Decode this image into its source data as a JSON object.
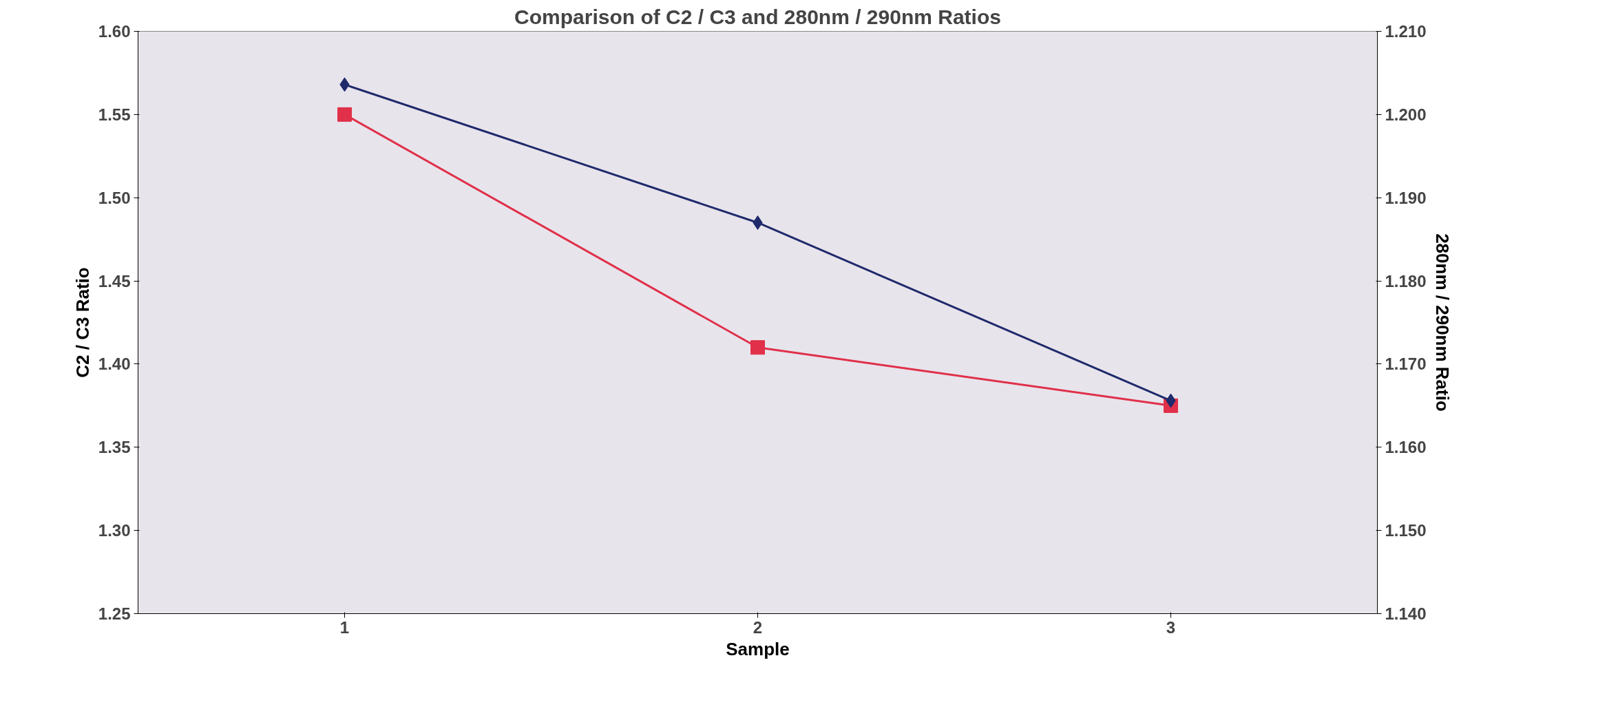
{
  "chart_data": {
    "type": "line",
    "title": "Comparison of C2 / C3 and 280nm / 290nm Ratios",
    "xlabel": "Sample",
    "ylabel": "C2 / C3 Ratio",
    "y2label": "280nm / 290nm Ratio",
    "categories": [
      "1",
      "2",
      "3"
    ],
    "series": [
      {
        "color": "#1f2a6b",
        "values": [
          1.568,
          1.485,
          1.378
        ],
        "marker": "diamond"
      },
      {
        "color": "#e0304a",
        "values": [
          1.2,
          1.172,
          1.165
        ],
        "marker": "square",
        "axis": "y2"
      }
    ],
    "ylim": [
      1.25,
      1.6
    ],
    "yticks": [
      1.25,
      {
        "value": 1.3,
        "label": "1.30"
      },
      1.35,
      {
        "value": 1.4,
        "label": "1.40"
      },
      1.45,
      {
        "value": 1.5,
        "label": "1.50"
      },
      1.55,
      {
        "value": 1.6,
        "label": "1.60"
      }
    ],
    "y2lim": [
      1.14,
      1.21
    ],
    "y2ticks": [
      {
        "value": 1.14,
        "label": "1.140"
      },
      {
        "value": 1.15,
        "label": "1.150"
      },
      {
        "value": 1.16,
        "label": "1.160"
      },
      {
        "value": 1.17,
        "label": "1.170"
      },
      {
        "value": 1.18,
        "label": "1.180"
      },
      {
        "value": 1.19,
        "label": "1.190"
      },
      {
        "value": 1.2,
        "label": "1.200"
      },
      {
        "value": 1.21,
        "label": "1.210"
      }
    ],
    "grid": false
  }
}
